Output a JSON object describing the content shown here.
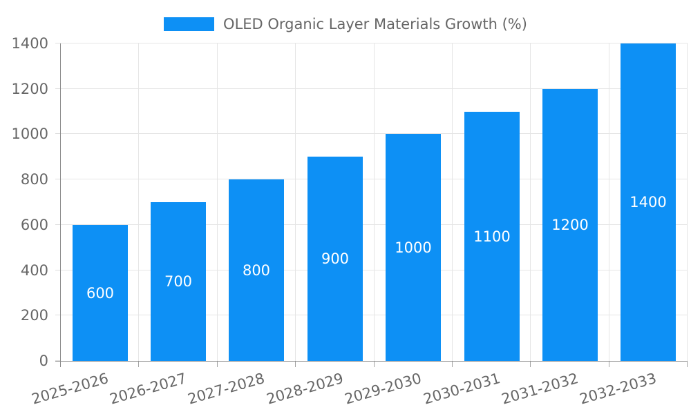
{
  "chart_data": {
    "type": "bar",
    "title": "",
    "legend_position": "top",
    "legend_marker": "rect",
    "categories": [
      "2025-2026",
      "2026-2027",
      "2027-2028",
      "2028-2029",
      "2029-2030",
      "2030-2031",
      "2031-2032",
      "2032-2033"
    ],
    "series": [
      {
        "name": "OLED Organic Layer Materials Growth (%)",
        "values": [
          600,
          700,
          800,
          900,
          1000,
          1100,
          1200,
          1400
        ]
      }
    ],
    "bar_value_labels": [
      "600",
      "700",
      "800",
      "900",
      "1000",
      "1100",
      "1200",
      "1400"
    ],
    "xlabel": "",
    "ylabel": "",
    "ylim": [
      0,
      1400
    ],
    "yticks": [
      0,
      200,
      400,
      600,
      800,
      1000,
      1200,
      1400
    ],
    "x_tick_rotation_deg": -16,
    "grid": true,
    "colors": {
      "bar": "#0d90f5",
      "grid": "#e5e5e5",
      "axis": "#8a8a8a",
      "tick_left": "#dedede",
      "tick_bottom": "#a3a3a3",
      "text": "#666666",
      "bar_label": "#ffffff",
      "background": "#ffffff"
    }
  }
}
